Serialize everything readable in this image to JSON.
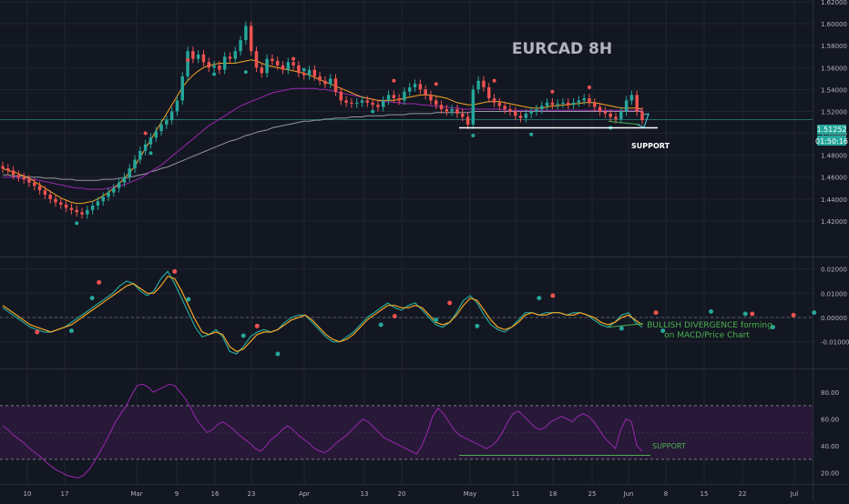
{
  "colors": {
    "background": "#131722",
    "grid": "#1f2430",
    "axis_text": "#b2b5be",
    "candle_up": "#26a69a",
    "candle_down": "#ef5350",
    "ma_fast": "#f5a623",
    "ma_mid": "#9c27b0",
    "ma_slow": "#9598a1",
    "macd_line": "#26a69a",
    "signal_line": "#f5a623",
    "rsi_line": "#9c27b0",
    "rsi_band": "#2a1a3a",
    "annotation_green": "#4caf50",
    "support_white": "#ffffff",
    "price_label_bg": "#26a69a",
    "dot_green": "#26a69a",
    "dot_red": "#ef5350"
  },
  "chart_data": [
    {
      "type": "candlestick",
      "title": "EURCAD 8H",
      "ylim": [
        1.4,
        1.62
      ],
      "y_ticks": [
        "1.62000",
        "1.60000",
        "1.58000",
        "1.56000",
        "1.54000",
        "1.52000",
        "1.50000",
        "1.48000",
        "1.46000",
        "1.44000",
        "1.42000"
      ],
      "current_price": "1.51252",
      "countdown": "01:50:16",
      "annotations": [
        "SUPPORT"
      ],
      "close": [
        1.468,
        1.466,
        1.462,
        1.46,
        1.458,
        1.455,
        1.452,
        1.448,
        1.444,
        1.44,
        1.437,
        1.435,
        1.432,
        1.43,
        1.428,
        1.426,
        1.43,
        1.434,
        1.438,
        1.442,
        1.446,
        1.45,
        1.455,
        1.46,
        1.468,
        1.476,
        1.484,
        1.49,
        1.496,
        1.502,
        1.508,
        1.512,
        1.52,
        1.53,
        1.552,
        1.575,
        1.568,
        1.572,
        1.565,
        1.56,
        1.562,
        1.558,
        1.57,
        1.568,
        1.575,
        1.585,
        1.598,
        1.575,
        1.56,
        1.555,
        1.568,
        1.566,
        1.562,
        1.558,
        1.565,
        1.562,
        1.555,
        1.553,
        1.558,
        1.552,
        1.548,
        1.545,
        1.55,
        1.538,
        1.53,
        1.528,
        1.527,
        1.528,
        1.53,
        1.528,
        1.526,
        1.524,
        1.53,
        1.535,
        1.532,
        1.53,
        1.538,
        1.542,
        1.545,
        1.54,
        1.535,
        1.53,
        1.526,
        1.522,
        1.52,
        1.522,
        1.518,
        1.515,
        1.508,
        1.54,
        1.548,
        1.542,
        1.532,
        1.528,
        1.525,
        1.522,
        1.52,
        1.516,
        1.514,
        1.518,
        1.52,
        1.522,
        1.525,
        1.528,
        1.526,
        1.527,
        1.528,
        1.526,
        1.528,
        1.53,
        1.532,
        1.528,
        1.524,
        1.52,
        1.518,
        1.515,
        1.513,
        1.52,
        1.53,
        1.535,
        1.52,
        1.512
      ],
      "sma_fast": [
        1.468,
        1.466,
        1.465,
        1.463,
        1.461,
        1.459,
        1.456,
        1.453,
        1.45,
        1.447,
        1.444,
        1.441,
        1.439,
        1.437,
        1.436,
        1.436,
        1.437,
        1.438,
        1.44,
        1.443,
        1.446,
        1.45,
        1.454,
        1.459,
        1.464,
        1.47,
        1.478,
        1.486,
        1.494,
        1.502,
        1.51,
        1.518,
        1.526,
        1.534,
        1.542,
        1.548,
        1.553,
        1.557,
        1.56,
        1.562,
        1.563,
        1.564,
        1.564,
        1.564,
        1.564,
        1.565,
        1.566,
        1.567,
        1.566,
        1.564,
        1.562,
        1.561,
        1.56,
        1.559,
        1.558,
        1.557,
        1.556,
        1.555,
        1.553,
        1.551,
        1.549,
        1.547,
        1.545,
        1.543,
        1.541,
        1.539,
        1.537,
        1.535,
        1.533,
        1.532,
        1.531,
        1.53,
        1.53,
        1.53,
        1.53,
        1.531,
        1.532,
        1.533,
        1.534,
        1.535,
        1.535,
        1.535,
        1.534,
        1.533,
        1.532,
        1.53,
        1.528,
        1.527,
        1.526,
        1.526,
        1.527,
        1.528,
        1.529,
        1.529,
        1.529,
        1.528,
        1.527,
        1.526,
        1.525,
        1.524,
        1.523,
        1.523,
        1.523,
        1.524,
        1.525,
        1.525,
        1.526,
        1.526,
        1.527,
        1.527,
        1.528,
        1.528,
        1.528,
        1.527,
        1.526,
        1.525,
        1.524,
        1.523,
        1.523,
        1.523,
        1.523,
        1.522
      ],
      "sma_mid": [
        1.46,
        1.46,
        1.46,
        1.459,
        1.459,
        1.458,
        1.458,
        1.457,
        1.456,
        1.455,
        1.454,
        1.453,
        1.452,
        1.451,
        1.45,
        1.45,
        1.449,
        1.449,
        1.449,
        1.449,
        1.45,
        1.451,
        1.452,
        1.453,
        1.455,
        1.457,
        1.459,
        1.462,
        1.465,
        1.468,
        1.471,
        1.475,
        1.479,
        1.483,
        1.487,
        1.491,
        1.495,
        1.499,
        1.503,
        1.507,
        1.51,
        1.513,
        1.516,
        1.519,
        1.522,
        1.525,
        1.527,
        1.529,
        1.531,
        1.533,
        1.535,
        1.537,
        1.538,
        1.539,
        1.54,
        1.541,
        1.541,
        1.541,
        1.541,
        1.541,
        1.54,
        1.54,
        1.539,
        1.538,
        1.537,
        1.536,
        1.535,
        1.534,
        1.533,
        1.532,
        1.531,
        1.53,
        1.529,
        1.529,
        1.528,
        1.528,
        1.527,
        1.527,
        1.527,
        1.526,
        1.526,
        1.525,
        1.525,
        1.524,
        1.524,
        1.523,
        1.523,
        1.522,
        1.522,
        1.522,
        1.522,
        1.522,
        1.522,
        1.522,
        1.522,
        1.521,
        1.521,
        1.521,
        1.521,
        1.521,
        1.521,
        1.521,
        1.521,
        1.521,
        1.521,
        1.521,
        1.521,
        1.521,
        1.521,
        1.521,
        1.521,
        1.521,
        1.521,
        1.521,
        1.521,
        1.521,
        1.521,
        1.521,
        1.521,
        1.521,
        1.521,
        1.521
      ],
      "sma_slow": [
        1.462,
        1.462,
        1.461,
        1.461,
        1.461,
        1.46,
        1.46,
        1.46,
        1.459,
        1.459,
        1.459,
        1.458,
        1.458,
        1.458,
        1.457,
        1.457,
        1.457,
        1.457,
        1.457,
        1.458,
        1.458,
        1.458,
        1.459,
        1.459,
        1.46,
        1.461,
        1.462,
        1.463,
        1.465,
        1.466,
        1.468,
        1.469,
        1.471,
        1.473,
        1.475,
        1.477,
        1.479,
        1.481,
        1.483,
        1.485,
        1.487,
        1.489,
        1.491,
        1.493,
        1.494,
        1.496,
        1.498,
        1.499,
        1.501,
        1.502,
        1.503,
        1.505,
        1.506,
        1.507,
        1.508,
        1.509,
        1.51,
        1.511,
        1.511,
        1.512,
        1.512,
        1.513,
        1.513,
        1.514,
        1.514,
        1.514,
        1.515,
        1.515,
        1.515,
        1.516,
        1.516,
        1.516,
        1.516,
        1.517,
        1.517,
        1.517,
        1.517,
        1.518,
        1.518,
        1.518,
        1.518,
        1.518,
        1.519,
        1.519,
        1.519,
        1.519,
        1.519,
        1.519,
        1.519,
        1.52,
        1.52,
        1.52,
        1.52,
        1.52,
        1.52,
        1.52,
        1.52,
        1.52,
        1.52,
        1.52,
        1.52,
        1.52,
        1.52,
        1.52,
        1.52,
        1.52,
        1.52,
        1.52,
        1.52,
        1.52,
        1.52,
        1.52,
        1.52,
        1.52,
        1.52,
        1.52,
        1.52,
        1.52,
        1.52,
        1.52,
        1.52,
        1.52
      ],
      "support_level": 1.505,
      "green_dots": [
        [
          14,
          1.418
        ],
        [
          28,
          1.482
        ],
        [
          40,
          1.554
        ],
        [
          46,
          1.556
        ],
        [
          57,
          1.558
        ],
        [
          70,
          1.52
        ],
        [
          89,
          1.498
        ],
        [
          100,
          1.499
        ],
        [
          115,
          1.505
        ]
      ],
      "red_dots": [
        [
          27,
          1.5
        ],
        [
          35,
          1.567
        ],
        [
          55,
          1.568
        ],
        [
          74,
          1.548
        ],
        [
          82,
          1.545
        ],
        [
          93,
          1.548
        ],
        [
          104,
          1.538
        ],
        [
          111,
          1.542
        ]
      ]
    },
    {
      "type": "line",
      "indicator": "MACD",
      "ylim": [
        -0.018,
        0.024
      ],
      "y_ticks": [
        "0.02000",
        "0.01000",
        "0.00000",
        "-0.01000"
      ],
      "annotations": [
        "BULLISH DIVERGENCE forming",
        "on MACD/Price Chart"
      ],
      "macd": [
        0.004,
        0.002,
        0.0,
        -0.002,
        -0.004,
        -0.005,
        -0.006,
        -0.006,
        -0.005,
        -0.004,
        -0.002,
        0.0,
        0.002,
        0.004,
        0.006,
        0.008,
        0.01,
        0.013,
        0.015,
        0.014,
        0.011,
        0.009,
        0.011,
        0.016,
        0.019,
        0.014,
        0.008,
        0.002,
        -0.004,
        -0.008,
        -0.007,
        -0.005,
        -0.008,
        -0.014,
        -0.015,
        -0.012,
        -0.008,
        -0.006,
        -0.005,
        -0.006,
        -0.005,
        -0.002,
        0.0,
        0.001,
        0.001,
        -0.002,
        -0.005,
        -0.008,
        -0.01,
        -0.01,
        -0.008,
        -0.006,
        -0.003,
        0.0,
        0.002,
        0.004,
        0.006,
        0.004,
        0.003,
        0.005,
        0.006,
        0.003,
        0.0,
        -0.003,
        -0.004,
        -0.002,
        0.002,
        0.007,
        0.009,
        0.006,
        0.001,
        -0.003,
        -0.005,
        -0.006,
        -0.004,
        -0.001,
        0.002,
        0.002,
        0.001,
        0.002,
        0.002,
        0.002,
        0.001,
        0.002,
        0.002,
        0.001,
        -0.001,
        -0.003,
        -0.004,
        -0.002,
        0.001,
        0.002,
        -0.002,
        -0.004
      ],
      "signal": [
        0.005,
        0.003,
        0.001,
        -0.001,
        -0.003,
        -0.004,
        -0.005,
        -0.006,
        -0.005,
        -0.004,
        -0.003,
        -0.001,
        0.001,
        0.003,
        0.005,
        0.007,
        0.009,
        0.011,
        0.013,
        0.014,
        0.012,
        0.01,
        0.01,
        0.013,
        0.017,
        0.016,
        0.011,
        0.005,
        -0.001,
        -0.006,
        -0.007,
        -0.006,
        -0.007,
        -0.012,
        -0.014,
        -0.013,
        -0.01,
        -0.007,
        -0.006,
        -0.006,
        -0.005,
        -0.003,
        -0.001,
        0.0,
        0.001,
        -0.001,
        -0.004,
        -0.007,
        -0.009,
        -0.01,
        -0.009,
        -0.007,
        -0.004,
        -0.001,
        0.001,
        0.003,
        0.005,
        0.005,
        0.004,
        0.004,
        0.005,
        0.004,
        0.001,
        -0.002,
        -0.003,
        -0.002,
        0.001,
        0.005,
        0.008,
        0.007,
        0.003,
        -0.001,
        -0.004,
        -0.005,
        -0.004,
        -0.002,
        0.001,
        0.002,
        0.001,
        0.001,
        0.002,
        0.002,
        0.001,
        0.001,
        0.002,
        0.001,
        0.0,
        -0.002,
        -0.003,
        -0.002,
        0.0,
        0.001,
        -0.001,
        -0.003
      ],
      "green_dots": [
        [
          10,
          -0.0055
        ],
        [
          13,
          0.008
        ],
        [
          27,
          0.0075
        ],
        [
          35,
          -0.0075
        ],
        [
          40,
          -0.015
        ],
        [
          55,
          -0.003
        ],
        [
          63,
          -0.001
        ],
        [
          69,
          -0.0035
        ],
        [
          78,
          0.008
        ],
        [
          90,
          -0.0045
        ],
        [
          96,
          -0.0055
        ],
        [
          103,
          0.0025
        ],
        [
          108,
          0.0015
        ],
        [
          112,
          -0.004
        ],
        [
          118,
          0.002
        ]
      ],
      "red_dots": [
        [
          5,
          -0.006
        ],
        [
          14,
          0.0145
        ],
        [
          25,
          0.019
        ],
        [
          37,
          -0.0035
        ],
        [
          57,
          0.0005
        ],
        [
          65,
          0.006
        ],
        [
          80,
          0.009
        ],
        [
          95,
          0.002
        ],
        [
          109,
          0.0015
        ],
        [
          115,
          0.001
        ]
      ]
    },
    {
      "type": "line",
      "indicator": "RSI",
      "ylim": [
        15,
        95
      ],
      "y_ticks": [
        "80.00",
        "60.00",
        "40.00",
        "20.00"
      ],
      "overbought": 70,
      "oversold": 30,
      "annotations": [
        "SUPPORT"
      ],
      "support_level": 33,
      "rsi": [
        55,
        52,
        48,
        45,
        42,
        38,
        35,
        32,
        28,
        25,
        22,
        20,
        18,
        17,
        16,
        18,
        22,
        28,
        35,
        42,
        50,
        58,
        64,
        70,
        78,
        85,
        86,
        84,
        80,
        82,
        84,
        86,
        85,
        80,
        75,
        68,
        60,
        55,
        50,
        52,
        56,
        58,
        55,
        52,
        48,
        45,
        42,
        38,
        36,
        40,
        45,
        48,
        52,
        55,
        52,
        48,
        45,
        42,
        38,
        36,
        35,
        38,
        42,
        45,
        48,
        52,
        56,
        60,
        58,
        54,
        50,
        46,
        44,
        42,
        40,
        38,
        36,
        34,
        40,
        50,
        62,
        68,
        64,
        58,
        52,
        48,
        46,
        44,
        42,
        40,
        38,
        40,
        44,
        50,
        58,
        64,
        66,
        62,
        58,
        54,
        52,
        54,
        58,
        60,
        62,
        60,
        58,
        62,
        64,
        62,
        58,
        52,
        46,
        42,
        38,
        52,
        60,
        58,
        40,
        36
      ]
    }
  ],
  "x_axis": {
    "labels": [
      "10",
      "17",
      "Mar",
      "9",
      "16",
      "23",
      "Apr",
      "13",
      "20",
      "May",
      "11",
      "18",
      "25",
      "Jun",
      "8",
      "15",
      "22",
      "Jul"
    ]
  }
}
